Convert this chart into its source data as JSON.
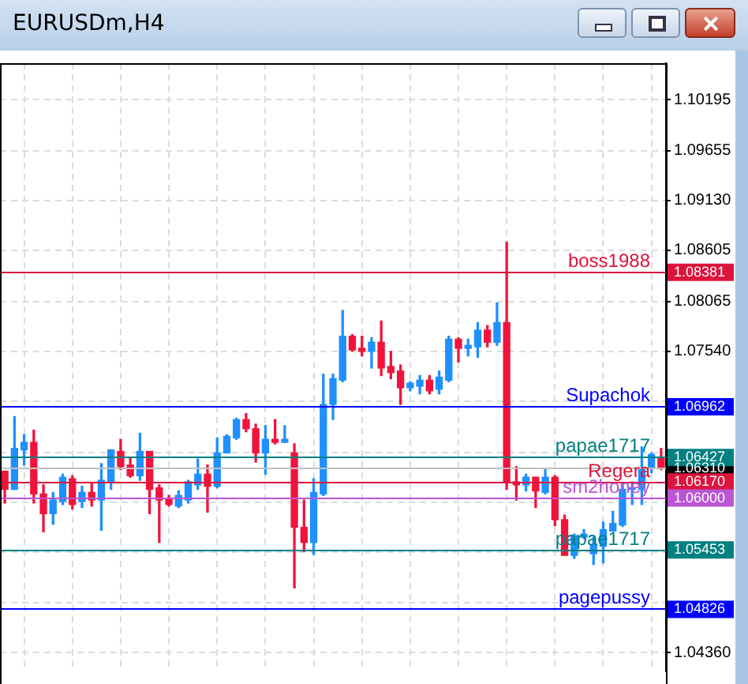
{
  "chart_data": {
    "type": "candlestick",
    "title": "EURUSDm,H4",
    "categories": [
      null,
      null,
      null,
      null,
      null,
      null,
      null,
      null,
      null,
      null,
      null,
      null,
      null,
      null,
      null,
      null,
      null,
      null,
      null,
      null,
      null,
      null,
      null,
      null,
      null,
      null,
      null,
      null,
      null,
      null,
      null,
      null,
      null,
      null,
      null,
      null,
      null,
      null,
      null,
      null,
      null,
      null,
      null,
      null,
      null,
      null,
      null,
      null,
      null,
      null,
      null,
      null,
      null,
      null,
      null,
      null,
      null,
      null,
      null,
      null,
      null,
      null,
      null,
      null,
      null,
      null,
      null,
      null,
      null
    ],
    "ohlc": [
      [
        1.06275,
        1.06275,
        1.05939,
        1.06083
      ],
      [
        1.06083,
        1.06851,
        1.06083,
        1.06515
      ],
      [
        1.06499,
        1.06659,
        1.06339,
        1.06579
      ],
      [
        1.06579,
        1.06707,
        1.05939,
        1.06035
      ],
      [
        1.06035,
        1.06131,
        1.05635,
        1.05827
      ],
      [
        1.05827,
        1.06051,
        1.05715,
        1.05971
      ],
      [
        1.05955,
        1.06243,
        1.05923,
        1.06211
      ],
      [
        1.06195,
        1.06227,
        1.05875,
        1.05923
      ],
      [
        1.05955,
        1.06115,
        1.05891,
        1.06051
      ],
      [
        1.06051,
        1.06147,
        1.05907,
        1.05971
      ],
      [
        1.05971,
        1.06355,
        1.05651,
        1.06179
      ],
      [
        1.06163,
        1.06499,
        1.06083,
        1.06499
      ],
      [
        1.06483,
        1.06611,
        1.06291,
        1.06323
      ],
      [
        1.06339,
        1.06419,
        1.06211,
        1.06227
      ],
      [
        1.06227,
        1.06675,
        1.06179,
        1.06483
      ],
      [
        1.06483,
        1.06483,
        1.05827,
        1.06083
      ],
      [
        1.06099,
        1.06131,
        1.05523,
        1.05971
      ],
      [
        1.05987,
        1.06019,
        1.05907,
        1.05923
      ],
      [
        1.05907,
        1.06067,
        1.05891,
        1.06019
      ],
      [
        1.05971,
        1.06179,
        1.05939,
        1.06163
      ],
      [
        1.06131,
        1.06403,
        1.06083,
        1.06243
      ],
      [
        1.06243,
        1.06339,
        1.05843,
        1.06115
      ],
      [
        1.06115,
        1.06627,
        1.06099,
        1.06467
      ],
      [
        1.06467,
        1.06659,
        1.06467,
        1.06643
      ],
      [
        1.06627,
        1.06835,
        1.06611,
        1.06819
      ],
      [
        1.06819,
        1.06883,
        1.06691,
        1.06723
      ],
      [
        1.06723,
        1.06771,
        1.06371,
        1.06467
      ],
      [
        1.06467,
        1.06755,
        1.06243,
        1.06611
      ],
      [
        1.06611,
        1.06819,
        1.06563,
        1.06579
      ],
      [
        1.06579,
        1.06755,
        1.06579,
        1.06611
      ],
      [
        1.06467,
        1.06563,
        1.05043,
        1.05683
      ],
      [
        1.05683,
        1.05971,
        1.05427,
        1.05523
      ],
      [
        1.05523,
        1.06195,
        1.05395,
        1.06051
      ],
      [
        1.06035,
        1.07299,
        1.06019,
        1.06979
      ],
      [
        1.06979,
        1.07299,
        1.06819,
        1.07251
      ],
      [
        1.07235,
        1.07971,
        1.07219,
        1.07699
      ],
      [
        1.07699,
        1.07715,
        1.07539,
        1.07555
      ],
      [
        1.07571,
        1.07699,
        1.07491,
        1.07539
      ],
      [
        1.07539,
        1.07683,
        1.07363,
        1.07635
      ],
      [
        1.07635,
        1.07859,
        1.07283,
        1.07363
      ],
      [
        1.07379,
        1.07539,
        1.07251,
        1.07315
      ],
      [
        1.07331,
        1.07395,
        1.06979,
        1.07155
      ],
      [
        1.07155,
        1.07219,
        1.07123,
        1.07203
      ],
      [
        1.07171,
        1.07283,
        1.07091,
        1.07235
      ],
      [
        1.07235,
        1.07283,
        1.07091,
        1.07123
      ],
      [
        1.07139,
        1.07331,
        1.07091,
        1.07267
      ],
      [
        1.07235,
        1.07699,
        1.07219,
        1.07667
      ],
      [
        1.07667,
        1.07683,
        1.07427,
        1.07571
      ],
      [
        1.07571,
        1.07667,
        1.07491,
        1.07603
      ],
      [
        1.07587,
        1.07843,
        1.07475,
        1.07763
      ],
      [
        1.07763,
        1.07811,
        1.07587,
        1.07635
      ],
      [
        1.07635,
        1.08051,
        1.07603,
        1.07843
      ],
      [
        1.07843,
        1.08691,
        1.06083,
        1.06163
      ],
      [
        1.06163,
        1.06323,
        1.05971,
        1.06131
      ],
      [
        1.06131,
        1.06243,
        1.06067,
        1.06211
      ],
      [
        1.06211,
        1.06211,
        1.05891,
        1.06067
      ],
      [
        1.06051,
        1.06291,
        1.06035,
        1.06211
      ],
      [
        1.06211,
        1.06227,
        1.05699,
        1.05763
      ],
      [
        1.05763,
        1.05811,
        1.05387,
        1.05387
      ],
      [
        1.05387,
        1.05611,
        1.05355,
        1.05595
      ],
      [
        1.05579,
        1.05659,
        1.05563,
        1.05611
      ],
      [
        1.05403,
        1.05579,
        1.05291,
        1.05499
      ],
      [
        1.05483,
        1.05739,
        1.05307,
        1.05659
      ],
      [
        1.05643,
        1.05851,
        1.05643,
        1.05723
      ],
      [
        1.05707,
        1.06147,
        1.05691,
        1.06083
      ],
      [
        1.06083,
        1.06163,
        1.05923,
        1.06099
      ],
      [
        1.06083,
        1.06531,
        1.05923,
        1.06307
      ],
      [
        1.06307,
        1.06467,
        1.06259,
        1.06451
      ],
      [
        1.06419,
        1.06515,
        1.06291,
        1.06307
      ]
    ],
    "colors": [
      "#f0143c",
      "#1e90ff",
      "#1e90ff",
      "#f0143c",
      "#f0143c",
      "#1e90ff",
      "#1e90ff",
      "#f0143c",
      "#1e90ff",
      "#f0143c",
      "#1e90ff",
      "#1e90ff",
      "#f0143c",
      "#f0143c",
      "#1e90ff",
      "#f0143c",
      "#f0143c",
      "#f0143c",
      "#1e90ff",
      "#1e90ff",
      "#1e90ff",
      "#f0143c",
      "#1e90ff",
      "#1e90ff",
      "#1e90ff",
      "#f0143c",
      "#f0143c",
      "#1e90ff",
      "#f0143c",
      "#1e90ff",
      "#f0143c",
      "#f0143c",
      "#1e90ff",
      "#1e90ff",
      "#1e90ff",
      "#1e90ff",
      "#f0143c",
      "#f0143c",
      "#1e90ff",
      "#f0143c",
      "#f0143c",
      "#f0143c",
      "#1e90ff",
      "#1e90ff",
      "#f0143c",
      "#1e90ff",
      "#1e90ff",
      "#f0143c",
      "#1e90ff",
      "#1e90ff",
      "#f0143c",
      "#1e90ff",
      "#f0143c",
      "#f0143c",
      "#1e90ff",
      "#f0143c",
      "#1e90ff",
      "#f0143c",
      "#f0143c",
      "#1e90ff",
      "#1e90ff",
      "#1e90ff",
      "#1e90ff",
      "#1e90ff",
      "#1e90ff",
      "#1e90ff",
      "#1e90ff",
      "#1e90ff",
      "#f0143c"
    ],
    "ylim": [
      1.04163,
      1.10579
    ],
    "yticks": [
      1.10195,
      1.09655,
      {
        "value": 1.0913,
        "label": "1.09130"
      },
      1.08605,
      1.08065,
      {
        "value": 1.0754,
        "label": "1.07540"
      },
      {
        "value": 1.07015,
        "label": null
      },
      {
        "value": 1.06475,
        "label": null
      },
      {
        "value": 1.0595,
        "label": null
      },
      {
        "value": 1.05425,
        "label": null
      },
      {
        "value": 1.04885,
        "label": null
      },
      {
        "value": 1.0436,
        "label": "1.04360"
      }
    ],
    "grid": true,
    "tick_labels": "y",
    "annotations": [
      "1.06310",
      "1.08381",
      "1.06962",
      "1.06427",
      "1.06170",
      "1.06000",
      "1.05453",
      "1.04826"
    ],
    "ref_lines": [
      {
        "axis": "y",
        "value": 1.0631,
        "label": null,
        "color": "#c0c0c0"
      },
      {
        "axis": "y",
        "value": 1.08381,
        "label": "boss1988",
        "color": "#dc143c"
      },
      {
        "axis": "y",
        "value": 1.06962,
        "label": "Supachok",
        "color": "#0000ff"
      },
      {
        "axis": "y",
        "value": 1.06427,
        "label": "papae1717",
        "color": "#008080"
      },
      {
        "axis": "y",
        "value": 1.0617,
        "label": "Regera",
        "color": "#dc143c"
      },
      {
        "axis": "y",
        "value": 1.06,
        "label": "sm2honey",
        "color": "#ba55d3"
      },
      {
        "axis": "y",
        "value": 1.05453,
        "label": "papae1717",
        "color": "#008080"
      },
      {
        "axis": "y",
        "value": 1.04826,
        "label": "pagepussy",
        "color": "#0000ff"
      }
    ]
  }
}
